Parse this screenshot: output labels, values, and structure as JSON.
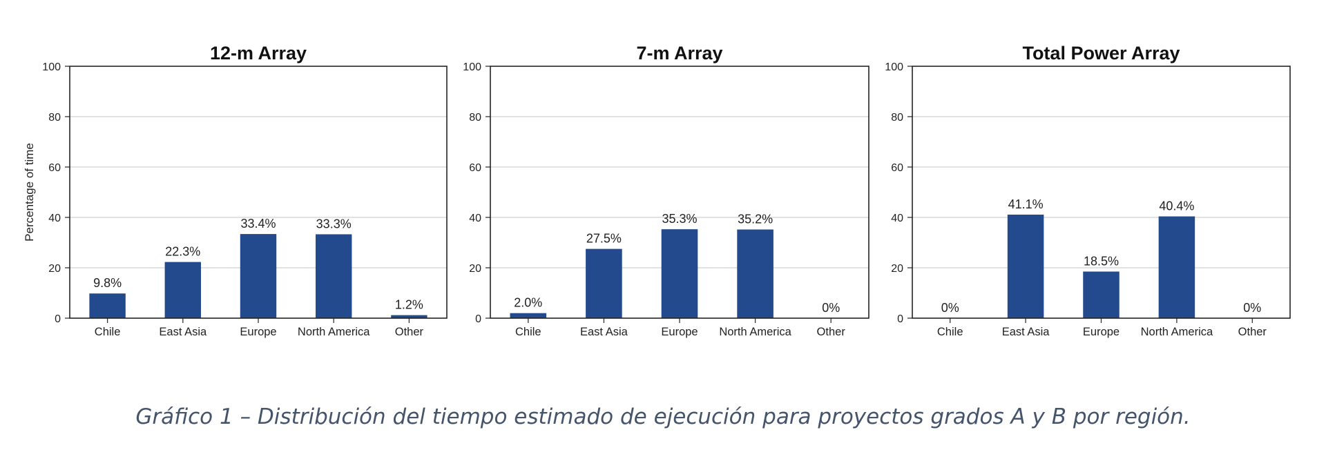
{
  "chart_data": [
    {
      "type": "bar",
      "title": "12-m Array",
      "ylabel": "Percentage of time",
      "xlabel": "",
      "categories": [
        "Chile",
        "East Asia",
        "Europe",
        "North America",
        "Other"
      ],
      "values": [
        9.8,
        22.3,
        33.4,
        33.3,
        1.2
      ],
      "value_labels": [
        "9.8%",
        "22.3%",
        "33.4%",
        "33.3%",
        "1.2%"
      ],
      "ylim": [
        0,
        100
      ],
      "yticks": [
        "0",
        "20",
        "40",
        "60",
        "80",
        "100"
      ],
      "grid": true,
      "color": "#234a8d"
    },
    {
      "type": "bar",
      "title": "7-m Array",
      "ylabel": "",
      "xlabel": "",
      "categories": [
        "Chile",
        "East Asia",
        "Europe",
        "North America",
        "Other"
      ],
      "values": [
        2.0,
        27.5,
        35.3,
        35.2,
        0
      ],
      "value_labels": [
        "2.0%",
        "27.5%",
        "35.3%",
        "35.2%",
        "0%"
      ],
      "ylim": [
        0,
        100
      ],
      "yticks": [
        "0",
        "20",
        "40",
        "60",
        "80",
        "100"
      ],
      "grid": true,
      "color": "#234a8d"
    },
    {
      "type": "bar",
      "title": "Total Power Array",
      "ylabel": "",
      "xlabel": "",
      "categories": [
        "Chile",
        "East Asia",
        "Europe",
        "North America",
        "Other"
      ],
      "values": [
        0,
        41.1,
        18.5,
        40.4,
        0
      ],
      "value_labels": [
        "0%",
        "41.1%",
        "18.5%",
        "40.4%",
        "0%"
      ],
      "ylim": [
        0,
        100
      ],
      "yticks": [
        "0",
        "20",
        "40",
        "60",
        "80",
        "100"
      ],
      "grid": true,
      "color": "#234a8d"
    }
  ],
  "caption": "Gráfico 1 – Distribución del tiempo estimado de ejecución para proyectos grados A y B por región."
}
